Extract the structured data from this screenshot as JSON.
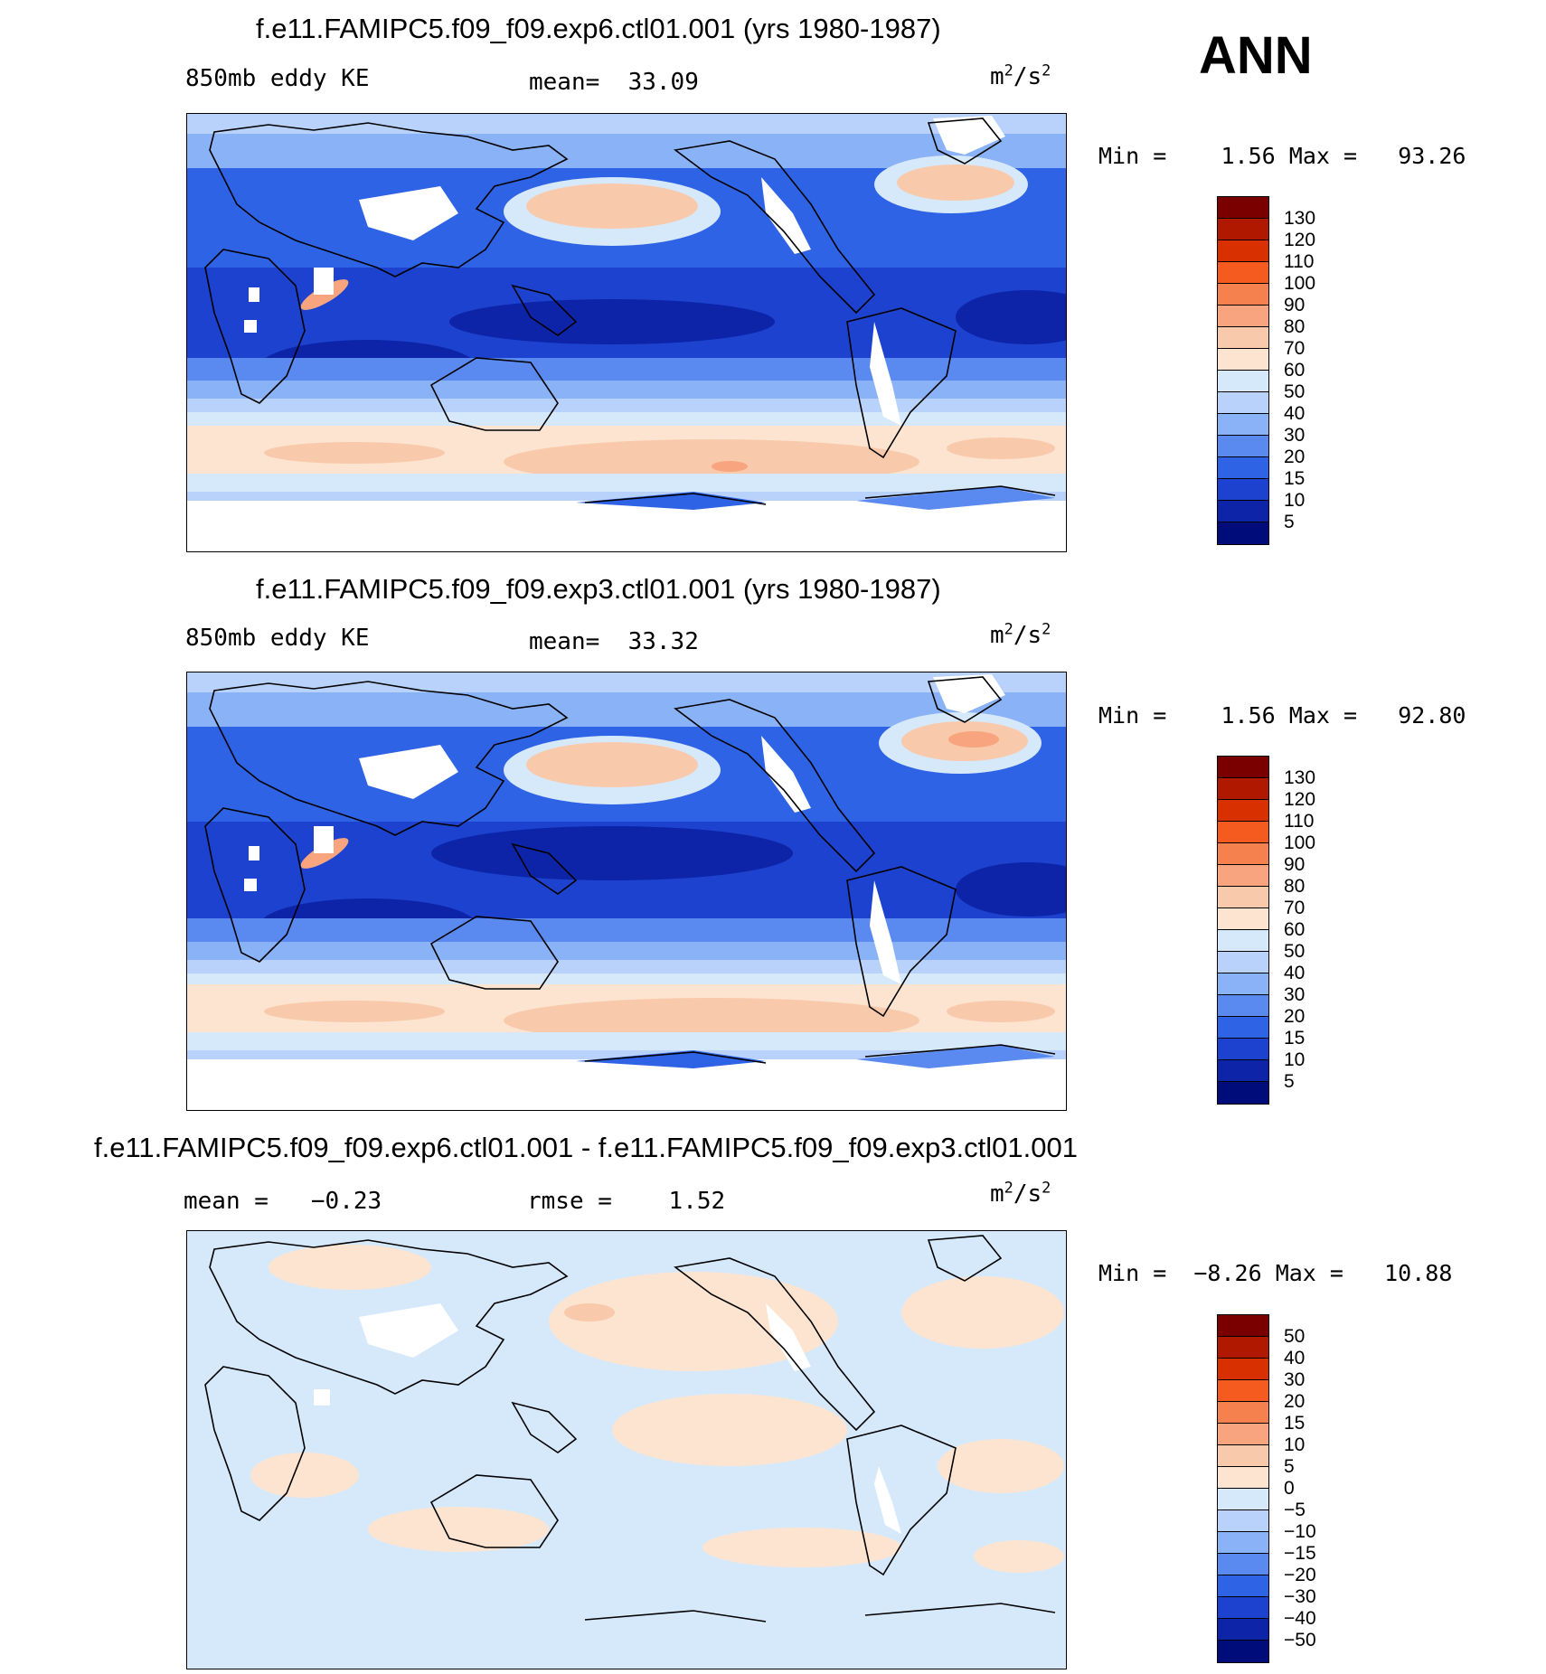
{
  "season": "ANN",
  "units_base": "m",
  "units_exp": "2",
  "units_sep": "/s",
  "units_exp2": "2",
  "panels": [
    {
      "id": "exp6",
      "title": "f.e11.FAMIPC5.f09_f09.exp6.ctl01.001 (yrs 1980-1987)",
      "left_label": "850mb eddy KE",
      "mean_label": "mean=",
      "mean_value": "33.09",
      "min_label": "Min =",
      "min_value": "1.56",
      "max_label": "Max =",
      "max_value": "93.26",
      "colorbar_labels": [
        "130",
        "120",
        "110",
        "100",
        "90",
        "80",
        "70",
        "60",
        "50",
        "40",
        "30",
        "20",
        "15",
        "10",
        "5"
      ]
    },
    {
      "id": "exp3",
      "title": "f.e11.FAMIPC5.f09_f09.exp3.ctl01.001 (yrs 1980-1987)",
      "left_label": "850mb eddy KE",
      "mean_label": "mean=",
      "mean_value": "33.32",
      "min_label": "Min =",
      "min_value": "1.56",
      "max_label": "Max =",
      "max_value": "92.80",
      "colorbar_labels": [
        "130",
        "120",
        "110",
        "100",
        "90",
        "80",
        "70",
        "60",
        "50",
        "40",
        "30",
        "20",
        "15",
        "10",
        "5"
      ]
    },
    {
      "id": "diff",
      "title": "f.e11.FAMIPC5.f09_f09.exp6.ctl01.001 - f.e11.FAMIPC5.f09_f09.exp3.ctl01.001",
      "left_label": "mean =",
      "left_value": "−0.23",
      "rmse_label": "rmse =",
      "rmse_value": "1.52",
      "min_label": "Min =",
      "min_value": "−8.26",
      "max_label": "Max =",
      "max_value": "10.88",
      "colorbar_labels": [
        "50",
        "40",
        "30",
        "20",
        "15",
        "10",
        "5",
        "0",
        "−5",
        "−10",
        "−15",
        "−20",
        "−30",
        "−40",
        "−50"
      ]
    }
  ],
  "colors": {
    "abs_scale": [
      "#7a0000",
      "#b01800",
      "#d93000",
      "#f55a1e",
      "#f5824e",
      "#f8a47e",
      "#f9c9ac",
      "#fde4d0",
      "#d6e9fb",
      "#b8d2fb",
      "#8ab2f6",
      "#5a8af0",
      "#2f63e6",
      "#1c42cf",
      "#0d24a8",
      "#000c7a"
    ],
    "diff_scale": [
      "#7a0000",
      "#b01800",
      "#d93000",
      "#f55a1e",
      "#f5824e",
      "#f8a47e",
      "#f9c9ac",
      "#fde4d0",
      "#d6e9fb",
      "#b8d2fb",
      "#8ab2f6",
      "#5a8af0",
      "#2f63e6",
      "#1c42cf",
      "#0d24a8",
      "#000c7a"
    ]
  },
  "chart_data": [
    {
      "type": "heatmap",
      "title": "f.e11.FAMIPC5.f09_f09.exp6.ctl01.001 (yrs 1980-1987)",
      "variable": "850mb eddy KE",
      "units": "m2/s2",
      "season": "ANN",
      "mean": 33.09,
      "min": 1.56,
      "max": 93.26,
      "contour_levels": [
        5,
        10,
        15,
        20,
        30,
        40,
        50,
        60,
        70,
        80,
        90,
        100,
        110,
        120,
        130
      ]
    },
    {
      "type": "heatmap",
      "title": "f.e11.FAMIPC5.f09_f09.exp3.ctl01.001 (yrs 1980-1987)",
      "variable": "850mb eddy KE",
      "units": "m2/s2",
      "season": "ANN",
      "mean": 33.32,
      "min": 1.56,
      "max": 92.8,
      "contour_levels": [
        5,
        10,
        15,
        20,
        30,
        40,
        50,
        60,
        70,
        80,
        90,
        100,
        110,
        120,
        130
      ]
    },
    {
      "type": "heatmap",
      "title": "f.e11.FAMIPC5.f09_f09.exp6.ctl01.001 - f.e11.FAMIPC5.f09_f09.exp3.ctl01.001",
      "units": "m2/s2",
      "mean": -0.23,
      "rmse": 1.52,
      "min": -8.26,
      "max": 10.88,
      "contour_levels": [
        -50,
        -40,
        -30,
        -20,
        -15,
        -10,
        -5,
        0,
        5,
        10,
        15,
        20,
        30,
        40,
        50
      ]
    }
  ]
}
